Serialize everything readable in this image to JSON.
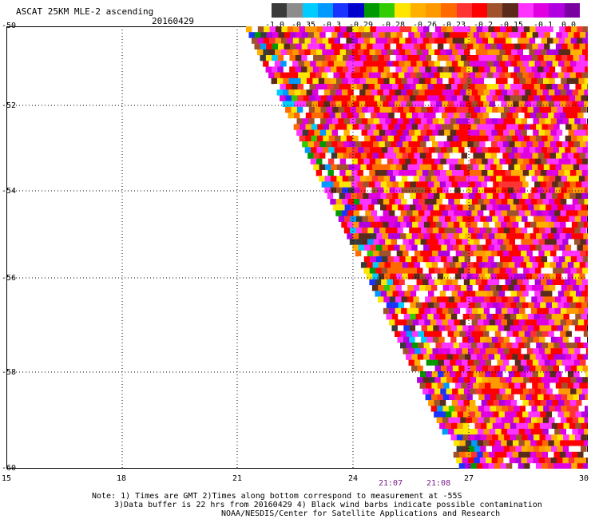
{
  "header": {
    "title": "ASCAT 25KM MLE-2 ascending",
    "date": "20160429"
  },
  "colorbar": {
    "colors": [
      "#3a3a3a",
      "#8c8c8c",
      "#00ccff",
      "#0099ff",
      "#1a33ff",
      "#0000cc",
      "#009900",
      "#33cc00",
      "#ffe600",
      "#ffb000",
      "#ff9900",
      "#ff6a00",
      "#ff3333",
      "#ff0000",
      "#a0522d",
      "#5a2a1a",
      "#ff33ff",
      "#e000e0",
      "#b000e0",
      "#7a00a0"
    ],
    "labels": [
      "-1.0",
      "-0.35",
      "-0.3",
      "-0.29",
      "-0.28",
      "-0.26",
      "-0.23",
      "-0.2",
      "-0.15",
      "-0.1",
      "0.0"
    ]
  },
  "axes": {
    "y_labels": [
      "-50",
      "-52",
      "-54",
      "-56",
      "-58",
      "-60"
    ],
    "x_labels": [
      "15",
      "18",
      "21",
      "24",
      "27",
      "30"
    ],
    "times": [
      "21:07",
      "21:08"
    ]
  },
  "notes": {
    "line1": "Note: 1) Times are GMT 2)Times along bottom correspond to measurement at -55S",
    "line2": "3)Data buffer is 22 hrs from 20160429 4) Black wind barbs indicate possible contamination",
    "line3": "NOAA/NESDIS/Center for Satellite Applications and Research"
  }
}
